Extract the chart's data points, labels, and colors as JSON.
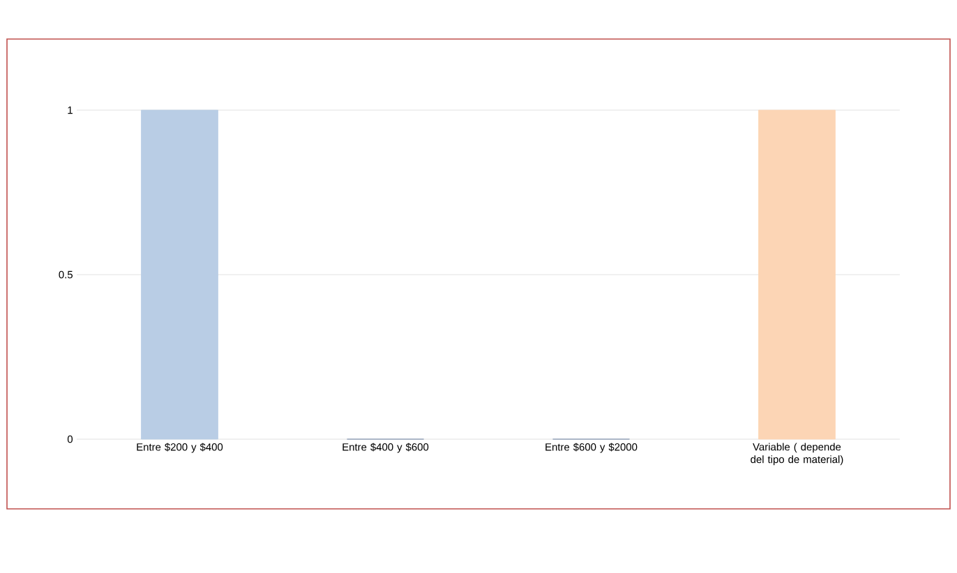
{
  "chart_data": {
    "type": "bar",
    "categories": [
      "Entre $200 y $400",
      "Entre $400 y $600",
      "Entre $600 y $2000",
      "Variable ( depende del tipo de material)"
    ],
    "values": [
      1,
      0,
      0,
      1
    ],
    "colors": [
      "#b9cde5",
      "#8497b0",
      "#8497b0",
      "#fcd5b5"
    ],
    "ylim": [
      0,
      1
    ],
    "yticks": [
      0,
      0.5,
      1
    ],
    "grid": "y"
  }
}
